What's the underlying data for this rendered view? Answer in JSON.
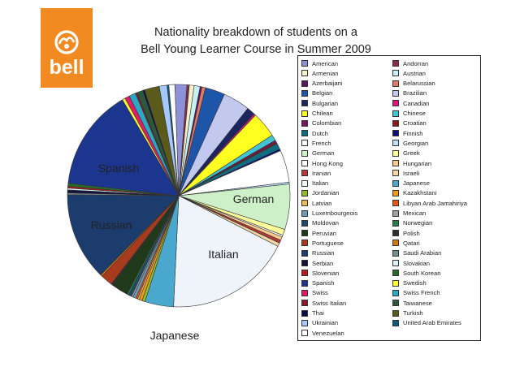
{
  "logo": {
    "text": "bell"
  },
  "title": {
    "line1": "Nationality breakdown of students on a",
    "line2": "Bell Young Learner Course in Summer 2009"
  },
  "chart_data": {
    "type": "pie",
    "title": "Nationality breakdown of students on a Bell Young Learner Course in Summer 2009",
    "slices": [
      {
        "name": "American",
        "value": 2.0,
        "color": "#8f91d8"
      },
      {
        "name": "Andorran",
        "value": 0.4,
        "color": "#8a2a44"
      },
      {
        "name": "Armenian",
        "value": 0.8,
        "color": "#f4f2c8"
      },
      {
        "name": "Austrian",
        "value": 1.0,
        "color": "#c9f0f4"
      },
      {
        "name": "Azerbaijani",
        "value": 0.3,
        "color": "#5a1560"
      },
      {
        "name": "Belarussian",
        "value": 0.6,
        "color": "#e27a6a"
      },
      {
        "name": "Belgian",
        "value": 3.3,
        "color": "#1d56a8"
      },
      {
        "name": "Brazilian",
        "value": 4.5,
        "color": "#c3c8ee"
      },
      {
        "name": "Bulgarian",
        "value": 1.4,
        "color": "#1c2560"
      },
      {
        "name": "Canadian",
        "value": 0.3,
        "color": "#e0147a"
      },
      {
        "name": "Chilean",
        "value": 4.3,
        "color": "#ffff22"
      },
      {
        "name": "Chinese",
        "value": 1.0,
        "color": "#43c4d2"
      },
      {
        "name": "Colombian",
        "value": 0.3,
        "color": "#7a1565"
      },
      {
        "name": "Croatian",
        "value": 0.3,
        "color": "#8a1a1a"
      },
      {
        "name": "Dutch",
        "value": 1.0,
        "color": "#0e6d80"
      },
      {
        "name": "Finnish",
        "value": 0.3,
        "color": "#0e0e7a"
      },
      {
        "name": "French",
        "value": 5.4,
        "color": "#ffffff"
      },
      {
        "name": "Georgian",
        "value": 0.3,
        "color": "#c3e0ff"
      },
      {
        "name": "German",
        "value": 7.6,
        "color": "#cef0c8"
      },
      {
        "name": "Greek",
        "value": 1.0,
        "color": "#ffff9a"
      },
      {
        "name": "Hong Kong",
        "value": 0.3,
        "color": "#ffffff"
      },
      {
        "name": "Hungarian",
        "value": 0.6,
        "color": "#f6c98c"
      },
      {
        "name": "Iranian",
        "value": 0.5,
        "color": "#b23a38"
      },
      {
        "name": "Israeli",
        "value": 0.6,
        "color": "#f2d6a4"
      },
      {
        "name": "Italian",
        "value": 21.0,
        "color": "#eef4fa"
      },
      {
        "name": "Japanese",
        "value": 4.8,
        "color": "#4aa8ce"
      },
      {
        "name": "Jordanian",
        "value": 0.5,
        "color": "#95ba2a"
      },
      {
        "name": "Kazakhstani",
        "value": 0.5,
        "color": "#f29a1a"
      },
      {
        "name": "Latvian",
        "value": 0.3,
        "color": "#eab95a"
      },
      {
        "name": "Libyan Arab Jamahiriya",
        "value": 0.3,
        "color": "#e8551a"
      },
      {
        "name": "Luxembourgeois",
        "value": 0.5,
        "color": "#6a9ab8"
      },
      {
        "name": "Mexican",
        "value": 0.3,
        "color": "#9aa0a6"
      },
      {
        "name": "Moldovan",
        "value": 0.5,
        "color": "#1d4a6a"
      },
      {
        "name": "Norwegian",
        "value": 0.3,
        "color": "#2a7a4a"
      },
      {
        "name": "Peruvian",
        "value": 2.8,
        "color": "#1f3a1a"
      },
      {
        "name": "Polish",
        "value": 0.3,
        "color": "#2f2f2f"
      },
      {
        "name": "Portuguese",
        "value": 2.0,
        "color": "#a83a1e"
      },
      {
        "name": "Qatari",
        "value": 0.3,
        "color": "#d07a10"
      },
      {
        "name": "Russian",
        "value": 14.7,
        "color": "#1c3c6e"
      },
      {
        "name": "Saudi Arabian",
        "value": 0.3,
        "color": "#7a8a92"
      },
      {
        "name": "Serbian",
        "value": 0.5,
        "color": "#12123a"
      },
      {
        "name": "Slovakian",
        "value": 0.3,
        "color": "#dff0f8"
      },
      {
        "name": "Slovenian",
        "value": 0.3,
        "color": "#b01e1e"
      },
      {
        "name": "South Korean",
        "value": 0.5,
        "color": "#2a6a2a"
      },
      {
        "name": "Spanish",
        "value": 17.0,
        "color": "#1c3690"
      },
      {
        "name": "Swedish",
        "value": 0.5,
        "color": "#ffff33"
      },
      {
        "name": "Swiss",
        "value": 0.8,
        "color": "#e01c6a"
      },
      {
        "name": "Swiss French",
        "value": 1.1,
        "color": "#2aa8c4"
      },
      {
        "name": "Swiss Italian",
        "value": 0.3,
        "color": "#8a1a2a"
      },
      {
        "name": "Taiwanese",
        "value": 1.0,
        "color": "#2a5a3a"
      },
      {
        "name": "Thai",
        "value": 0.3,
        "color": "#0a0a4a"
      },
      {
        "name": "Turkish",
        "value": 2.5,
        "color": "#5a5a1a"
      },
      {
        "name": "Ukrainian",
        "value": 1.3,
        "color": "#a6c8ff"
      },
      {
        "name": "United Arab Emirates",
        "value": 0.3,
        "color": "#0a5a7a"
      },
      {
        "name": "Venezuelan",
        "value": 1.0,
        "color": "#ffffff"
      }
    ],
    "pie_labels": [
      "Spanish",
      "Russian",
      "German",
      "Italian",
      "Japanese"
    ],
    "legend": {
      "placement": "right",
      "entries": [
        [
          "American",
          "Andorran"
        ],
        [
          "Armenian",
          "Austrian"
        ],
        [
          "Azerbaijani",
          "Belarussian"
        ],
        [
          "Belgian",
          "Brazilian"
        ],
        [
          "Bulgarian",
          "Canadian"
        ],
        [
          "Chilean",
          "Chinese"
        ],
        [
          "Colombian",
          "Croatian"
        ],
        [
          "Dutch",
          "Finnish"
        ],
        [
          "French",
          "Georgian"
        ],
        [
          "German",
          "Greek"
        ],
        [
          "Hong Kong",
          "Hungarian"
        ],
        [
          "Iranian",
          "Israeli"
        ],
        [
          "Italian",
          "Japanese"
        ],
        [
          "Jordanian",
          "Kazakhstani"
        ],
        [
          "Latvian",
          "Libyan Arab Jamahiriya"
        ],
        [
          "Luxembourgeois",
          "Mexican"
        ],
        [
          "Moldovan",
          "Norwegian"
        ],
        [
          "Peruvian",
          "Polish"
        ],
        [
          "Portuguese",
          "Qatari"
        ],
        [
          "Russian",
          "Saudi Arabian"
        ],
        [
          "Serbian",
          "Slovakian"
        ],
        [
          "Slovenian",
          "South Korean"
        ],
        [
          "Spanish",
          "Swedish"
        ],
        [
          "Swiss",
          "Swiss French"
        ],
        [
          "Swiss Italian",
          "Taiwanese"
        ],
        [
          "Thai",
          "Turkish"
        ],
        [
          "Ukrainian",
          "United Arab Emirates"
        ],
        [
          "Venezuelan"
        ]
      ]
    }
  }
}
